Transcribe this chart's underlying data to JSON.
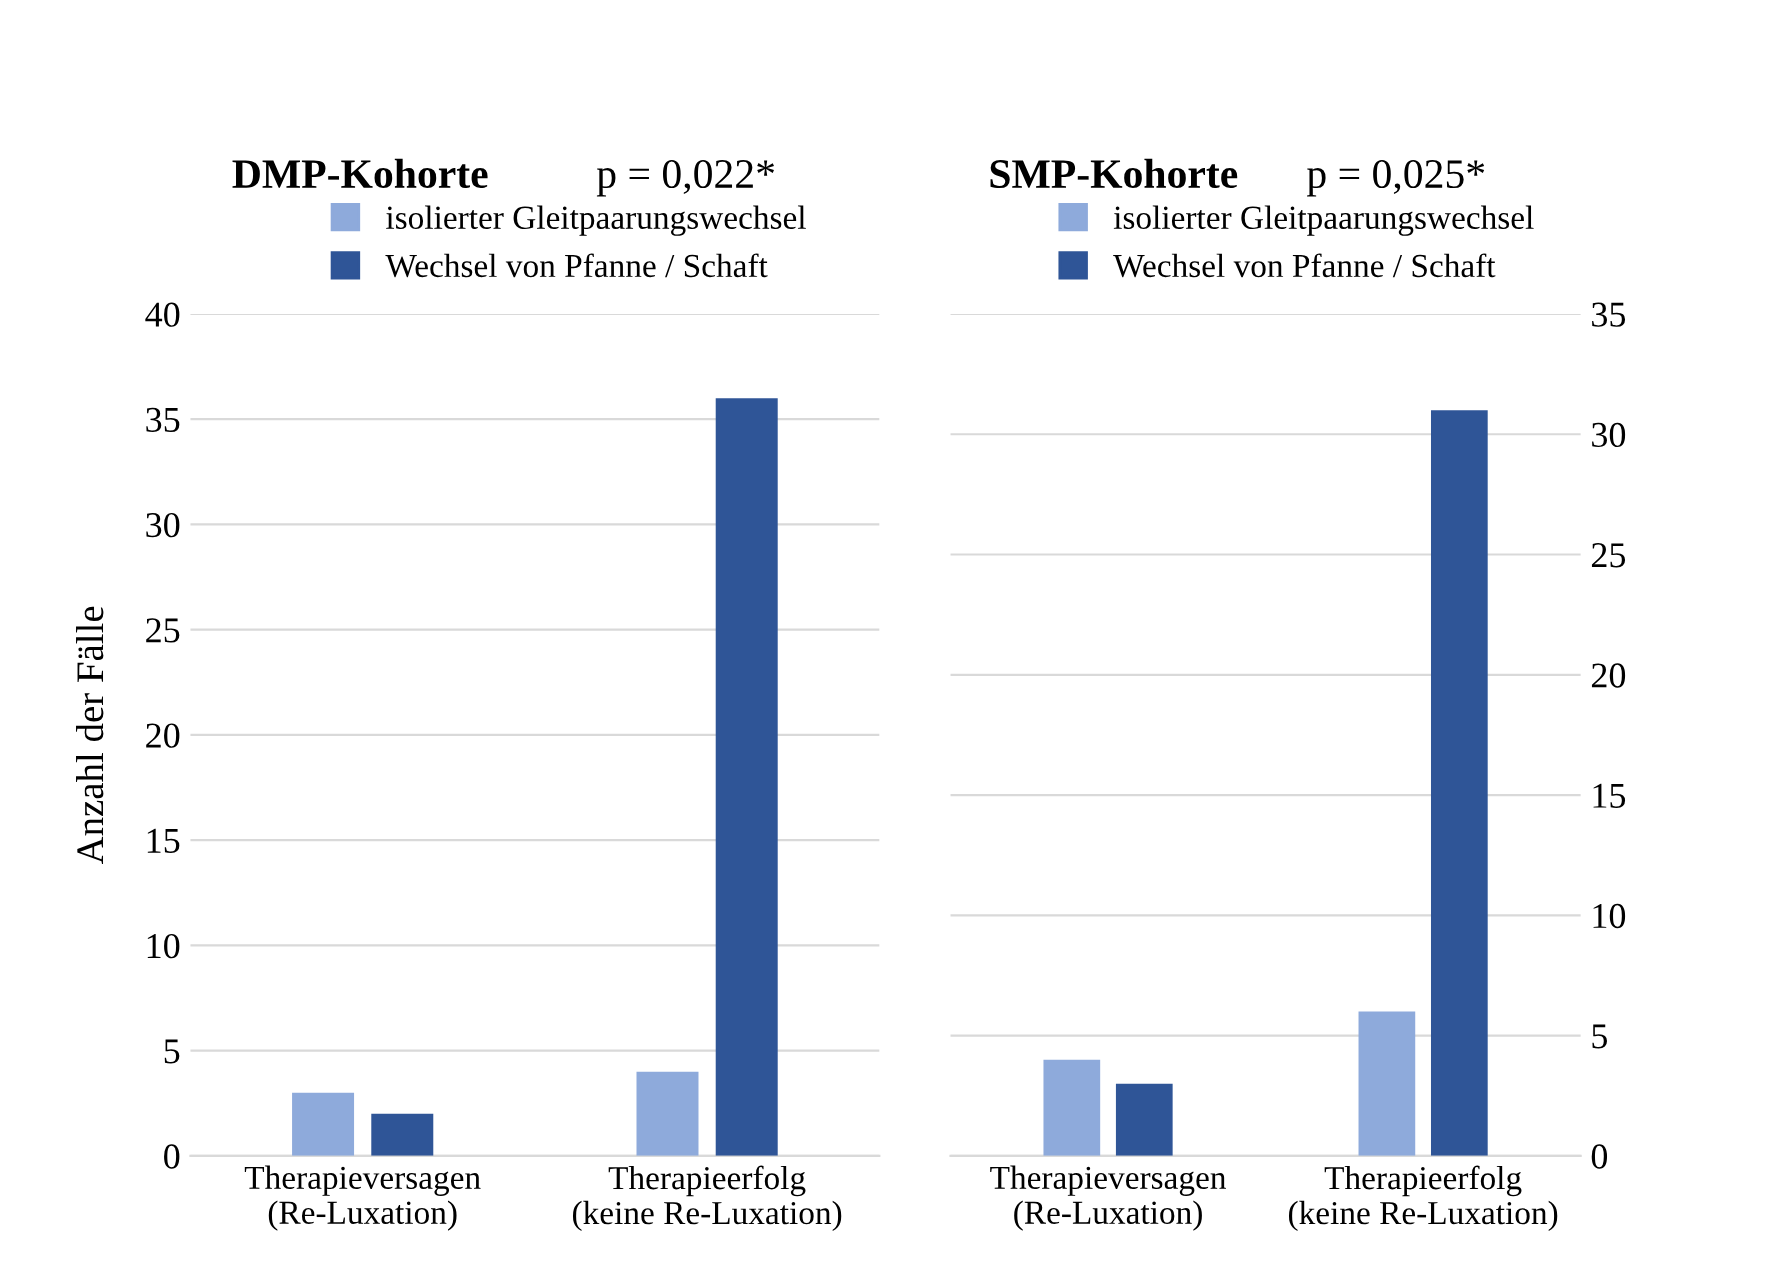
{
  "chart_data": [
    {
      "type": "bar",
      "title": "DMP-Kohorte",
      "annotations": [
        "p = 0,022*"
      ],
      "ylabel": "Anzahl der Fälle",
      "categories": [
        "Therapieversagen\n(Re-Luxation)",
        "Therapieerfolg\n(keine Re-Luxation)"
      ],
      "series": [
        {
          "name": "isolierter Gleitpaarungswechsel",
          "color": "#8eaadb",
          "values": [
            3,
            4
          ]
        },
        {
          "name": "Wechsel von Pfanne / Schaft",
          "color": "#2f5597",
          "values": [
            2,
            36
          ]
        }
      ],
      "ylim": [
        0,
        40
      ],
      "yticks": [
        0,
        5,
        10,
        15,
        20,
        25,
        30,
        35,
        40
      ],
      "grid": "y",
      "legend": "top"
    },
    {
      "type": "bar",
      "title": "SMP-Kohorte",
      "annotations": [
        "p = 0,025*"
      ],
      "categories": [
        "Therapieversagen\n(Re-Luxation)",
        "Therapieerfolg\n(keine Re-Luxation)"
      ],
      "series": [
        {
          "name": "isolierter Gleitpaarungswechsel",
          "color": "#8eaadb",
          "values": [
            4,
            6
          ]
        },
        {
          "name": "Wechsel von Pfanne / Schaft",
          "color": "#2f5597",
          "values": [
            3,
            31
          ]
        }
      ],
      "ylim": [
        0,
        35
      ],
      "yticks": [
        0,
        5,
        10,
        15,
        20,
        25,
        30,
        35
      ],
      "grid": "y",
      "legend": "top"
    }
  ]
}
